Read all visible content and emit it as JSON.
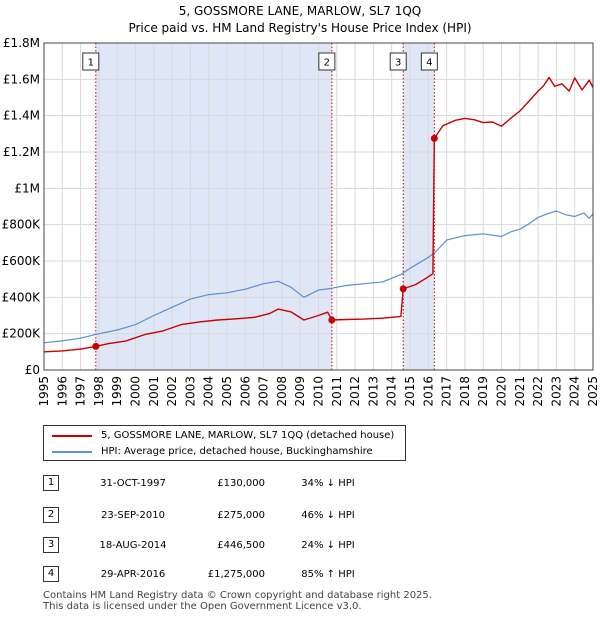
{
  "title": {
    "line1": "5, GOSSMORE LANE, MARLOW, SL7 1QQ",
    "line2": "Price paid vs. HM Land Registry's House Price Index (HPI)"
  },
  "colors": {
    "red": "#cc0000",
    "blue": "#5b8fd6",
    "shade": "#dfe6f5",
    "grid": "#d9d9d9"
  },
  "chart_data": {
    "type": "line",
    "title": "Price paid vs. HM Land Registry's House Price Index (HPI)",
    "xlim": [
      1995.0,
      2025.0
    ],
    "ylim": [
      0,
      1800000
    ],
    "x_ticks": [
      "1995",
      "1996",
      "1997",
      "1998",
      "1999",
      "2000",
      "2001",
      "2002",
      "2003",
      "2004",
      "2005",
      "2006",
      "2007",
      "2008",
      "2009",
      "2010",
      "2011",
      "2012",
      "2013",
      "2014",
      "2015",
      "2016",
      "2017",
      "2018",
      "2019",
      "2020",
      "2021",
      "2022",
      "2023",
      "2024",
      "2025"
    ],
    "y_ticks": [
      {
        "value": 0,
        "label": "£0"
      },
      {
        "value": 200000,
        "label": "£200K"
      },
      {
        "value": 400000,
        "label": "£400K"
      },
      {
        "value": 600000,
        "label": "£600K"
      },
      {
        "value": 800000,
        "label": "£800K"
      },
      {
        "value": 1000000,
        "label": "£1M"
      },
      {
        "value": 1200000,
        "label": "£1.2M"
      },
      {
        "value": 1400000,
        "label": "£1.4M"
      },
      {
        "value": 1600000,
        "label": "£1.6M"
      },
      {
        "value": 1800000,
        "label": "£1.8M"
      }
    ],
    "shaded_ranges": [
      [
        1997.83,
        2010.73
      ],
      [
        2014.63,
        2016.33
      ]
    ],
    "series": [
      {
        "name": "5, GOSSMORE LANE, MARLOW, SL7 1QQ (detached house)",
        "color": "#cc0000",
        "x": [
          1995.0,
          1996.0,
          1997.0,
          1997.83,
          1998.5,
          1999.5,
          2000.5,
          2001.5,
          2002.5,
          2003.5,
          2004.5,
          2005.5,
          2006.5,
          2007.3,
          2007.8,
          2008.5,
          2009.2,
          2010.0,
          2010.5,
          2010.73,
          2011.5,
          2012.5,
          2013.5,
          2014.5,
          2014.63,
          2015.3,
          2015.8,
          2016.25,
          2016.33,
          2016.8,
          2017.5,
          2018.0,
          2018.5,
          2019.0,
          2019.5,
          2020.0,
          2020.5,
          2021.0,
          2021.5,
          2022.0,
          2022.3,
          2022.6,
          2022.9,
          2023.3,
          2023.7,
          2024.0,
          2024.4,
          2024.8,
          2025.0
        ],
        "y": [
          100000,
          105000,
          115000,
          130000,
          145000,
          160000,
          195000,
          215000,
          250000,
          265000,
          275000,
          282000,
          290000,
          310000,
          335000,
          320000,
          275000,
          300000,
          318000,
          275000,
          278000,
          280000,
          285000,
          295000,
          446500,
          470000,
          500000,
          530000,
          1275000,
          1345000,
          1375000,
          1385000,
          1378000,
          1362000,
          1365000,
          1342000,
          1385000,
          1425000,
          1480000,
          1535000,
          1565000,
          1610000,
          1562000,
          1575000,
          1535000,
          1608000,
          1542000,
          1595000,
          1555000
        ]
      },
      {
        "name": "HPI: Average price, detached house, Buckinghamshire",
        "color": "#5b8fd6",
        "x": [
          1995.0,
          1996.0,
          1997.0,
          1998.0,
          1999.0,
          2000.0,
          2001.0,
          2002.0,
          2003.0,
          2004.0,
          2005.0,
          2006.0,
          2007.0,
          2007.8,
          2008.5,
          2009.2,
          2010.0,
          2010.7,
          2011.5,
          2012.5,
          2013.5,
          2014.5,
          2015.0,
          2015.5,
          2016.0,
          2016.4,
          2017.0,
          2018.0,
          2019.0,
          2020.0,
          2020.5,
          2021.0,
          2021.5,
          2022.0,
          2022.5,
          2023.0,
          2023.5,
          2024.0,
          2024.5,
          2024.8,
          2025.0
        ],
        "y": [
          150000,
          160000,
          175000,
          200000,
          220000,
          250000,
          300000,
          345000,
          390000,
          415000,
          425000,
          445000,
          475000,
          488000,
          455000,
          400000,
          440000,
          450000,
          465000,
          475000,
          485000,
          525000,
          560000,
          590000,
          620000,
          650000,
          715000,
          740000,
          750000,
          735000,
          760000,
          775000,
          805000,
          840000,
          860000,
          875000,
          855000,
          845000,
          865000,
          835000,
          860000
        ]
      }
    ],
    "sales": [
      {
        "num": "1",
        "date": "31-OCT-1997",
        "x": 1997.83,
        "value": 130000,
        "price": "£130,000",
        "hpi": "34% ↓ HPI"
      },
      {
        "num": "2",
        "date": "23-SEP-2010",
        "x": 2010.73,
        "value": 275000,
        "price": "£275,000",
        "hpi": "46% ↓ HPI"
      },
      {
        "num": "3",
        "date": "18-AUG-2014",
        "x": 2014.63,
        "value": 446500,
        "price": "£446,500",
        "hpi": "24% ↓ HPI"
      },
      {
        "num": "4",
        "date": "29-APR-2016",
        "x": 2016.33,
        "value": 1275000,
        "price": "£1,275,000",
        "hpi": "85% ↑ HPI"
      }
    ]
  },
  "legend": {
    "red_label": "5, GOSSMORE LANE, MARLOW, SL7 1QQ (detached house)",
    "blue_label": "HPI: Average price, detached house, Buckinghamshire"
  },
  "footer": {
    "line1": "Contains HM Land Registry data © Crown copyright and database right 2025.",
    "line2": "This data is licensed under the Open Government Licence v3.0."
  }
}
